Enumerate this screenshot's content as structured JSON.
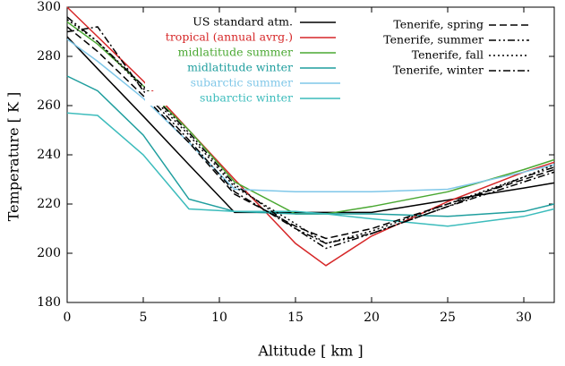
{
  "chart_data": {
    "type": "line",
    "x_label": "Altitude  [ km ]",
    "y_label": "Temperature  [ K ]",
    "x": [
      0,
      2,
      5,
      8,
      11,
      15,
      17,
      20,
      25,
      30,
      32
    ],
    "xlim": [
      0,
      32
    ],
    "xticks": [
      0,
      5,
      10,
      15,
      20,
      25,
      30
    ],
    "ylim": [
      180,
      300
    ],
    "yticks": [
      180,
      200,
      220,
      240,
      260,
      280,
      300
    ],
    "series": [
      {
        "name": "US standard atm.",
        "color": "#000000",
        "dash": "solid",
        "values": [
          288,
          275,
          255.7,
          236,
          216.6,
          216.6,
          216.6,
          216.6,
          221.6,
          226.5,
          228.6
        ]
      },
      {
        "name": "tropical (annual avrg.)",
        "color": "#d62728",
        "dash": "solid",
        "values": [
          300,
          288,
          270,
          250,
          230,
          204,
          195,
          207,
          221,
          233,
          237
        ]
      },
      {
        "name": "midlatitude summer",
        "color": "#4aa832",
        "dash": "solid",
        "values": [
          294,
          285,
          268,
          250,
          229,
          216,
          216,
          219,
          225,
          234,
          238
        ]
      },
      {
        "name": "midlatitude winter",
        "color": "#1f9e9e",
        "dash": "solid",
        "values": [
          272,
          266,
          248,
          222,
          217,
          216,
          216,
          216,
          215,
          217,
          220
        ]
      },
      {
        "name": "subarctic summer",
        "color": "#7fc7e8",
        "dash": "solid",
        "values": [
          287,
          278,
          263,
          245,
          226,
          225,
          225,
          225,
          226,
          233,
          236
        ]
      },
      {
        "name": "subarctic winter",
        "color": "#3cbcbc",
        "dash": "solid",
        "values": [
          257,
          256,
          240,
          218,
          217,
          217,
          216,
          214,
          211,
          215,
          218
        ]
      },
      {
        "name": "Tenerife, spring",
        "color": "#000000",
        "dash": "dashed",
        "values": [
          292,
          282,
          264,
          245,
          224,
          211,
          206,
          210,
          220,
          230,
          234
        ]
      },
      {
        "name": "Tenerife, summer",
        "color": "#000000",
        "dash": "dashdotdot",
        "values": [
          296,
          286,
          268,
          249,
          228,
          210,
          202,
          208,
          219,
          231,
          235
        ]
      },
      {
        "name": "Tenerife, fall",
        "color": "#000000",
        "dash": "dotted",
        "values": [
          295,
          286,
          267,
          248,
          227,
          212,
          204,
          209,
          220,
          231,
          236
        ]
      },
      {
        "name": "Tenerife, winter",
        "color": "#000000",
        "dash": "dashdot",
        "values": [
          290,
          292,
          266,
          246,
          225,
          210,
          204,
          208,
          219,
          229,
          233
        ]
      }
    ]
  }
}
